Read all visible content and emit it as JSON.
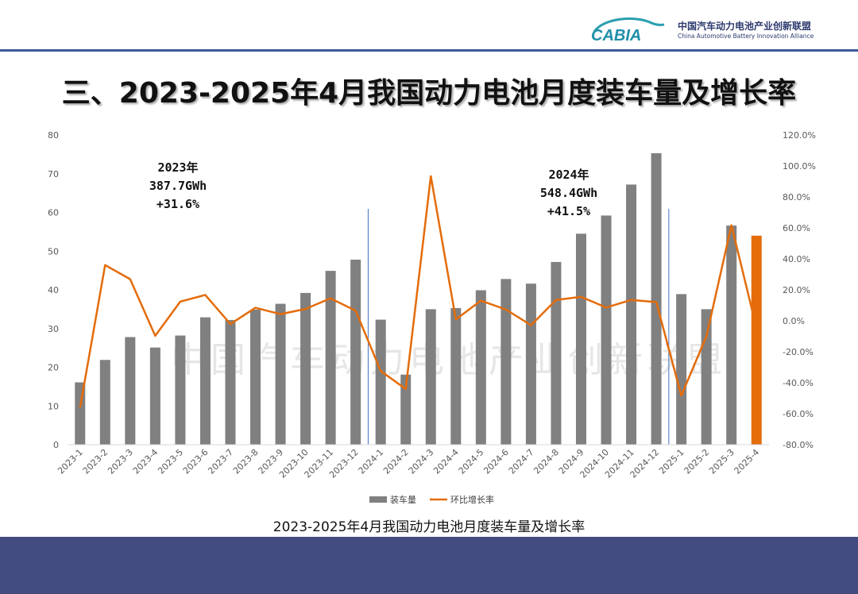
{
  "header": {
    "logo_text": "CABIA",
    "org_name_cn": "中国汽车动力电池产业创新联盟",
    "org_name_en": "China Automotive Battery Innovation Alliance"
  },
  "slide_title": "三、2023-2025年4月我国动力电池月度装车量及增长率",
  "caption": "2023-2025年4月我国动力电池月度装车量及增长率",
  "watermark": "中国汽车动力电池产业创新联盟",
  "colors": {
    "bar": "#808080",
    "bar_highlight": "#e46c0a",
    "line": "#e46c0a",
    "band": "#434c80",
    "divider": "#4472c4"
  },
  "annotations": [
    {
      "lines": [
        "2023年",
        "387.7GWh",
        "+31.6%"
      ]
    },
    {
      "lines": [
        "2024年",
        "548.4GWh",
        "+41.5%"
      ]
    }
  ],
  "chart_data": {
    "type": "bar",
    "title": "",
    "categories": [
      "2023-1",
      "2023-2",
      "2023-3",
      "2023-4",
      "2023-5",
      "2023-6",
      "2023-7",
      "2023-8",
      "2023-9",
      "2023-10",
      "2023-11",
      "2023-12",
      "2024-1",
      "2024-2",
      "2024-3",
      "2024-4",
      "2024-5",
      "2024-6",
      "2024-7",
      "2024-8",
      "2024-9",
      "2024-10",
      "2024-11",
      "2024-12",
      "2025-1",
      "2025-2",
      "2025-3",
      "2025-4"
    ],
    "series": [
      {
        "name": "装车量",
        "type": "bar",
        "axis": "left",
        "values": [
          16.1,
          21.9,
          27.8,
          25.1,
          28.2,
          32.9,
          32.2,
          34.9,
          36.4,
          39.2,
          44.9,
          47.8,
          32.3,
          18.1,
          35.0,
          35.3,
          39.9,
          42.8,
          41.6,
          47.2,
          54.5,
          59.2,
          67.2,
          75.3,
          38.9,
          35.0,
          56.6,
          54.0
        ]
      },
      {
        "name": "环比增长率",
        "type": "line",
        "axis": "right",
        "values": [
          -56.0,
          36.0,
          26.9,
          -9.7,
          12.4,
          16.7,
          -2.1,
          8.4,
          4.3,
          7.7,
          14.5,
          6.5,
          -32.4,
          -44.0,
          93.4,
          0.9,
          13.0,
          7.3,
          -2.8,
          13.5,
          15.5,
          8.6,
          13.5,
          12.1,
          -48.3,
          -10.0,
          61.7,
          -4.6
        ]
      }
    ],
    "y_left": {
      "lim": [
        0,
        80
      ],
      "ticks": [
        0,
        10,
        20,
        30,
        40,
        50,
        60,
        70,
        80
      ]
    },
    "y_right": {
      "lim": [
        -80,
        120
      ],
      "ticks": [
        "-80.0%",
        "-60.0%",
        "-40.0%",
        "-20.0%",
        "0.0%",
        "20.0%",
        "40.0%",
        "60.0%",
        "80.0%",
        "100.0%",
        "120.0%"
      ]
    },
    "highlight_index": 27,
    "year_dividers_after": [
      "2023-12",
      "2024-12"
    ],
    "legend_position": "bottom",
    "grid": false
  }
}
